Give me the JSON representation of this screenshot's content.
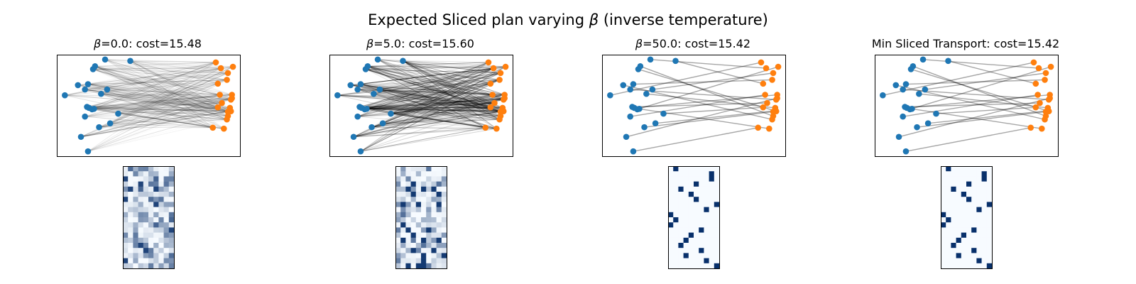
{
  "figure": {
    "title_prefix": "Expected Sliced plan varying ",
    "title_symbol": "β",
    "title_suffix": " (inverse temperature)"
  },
  "colors": {
    "source_points": "#1f77b4",
    "target_points": "#ff7f0e",
    "edges": "#000000",
    "heatmap_low": "#f7fbff",
    "heatmap_high": "#08306b"
  },
  "chart_data": [
    {
      "type": "scatter",
      "title_symbol": "β",
      "title_text": "=0.0: cost=15.48",
      "plan_mode": "soft",
      "edge_opacity": 0.18,
      "plan_values": "diffuse",
      "source": {
        "x": [
          0.31,
          0.08,
          0.37,
          0.35,
          0.32,
          0.21,
          0.28,
          0.48,
          0.24,
          0.5,
          0.28,
          0.31,
          0.42,
          0.36,
          0.38,
          0.61,
          0.44,
          0.53,
          0.3,
          0.73
        ],
        "y": [
          -1.12,
          0.04,
          -0.24,
          -0.25,
          -0.22,
          0.25,
          -0.4,
          0.78,
          -0.82,
          0.16,
          0.16,
          0.27,
          -0.62,
          0.58,
          0.64,
          -0.34,
          0.07,
          -0.54,
          -0.2,
          0.75
        ]
      },
      "target": {
        "x": [
          1.7,
          1.55,
          1.74,
          1.72,
          1.73,
          1.62,
          1.72,
          1.74,
          1.66,
          1.63,
          1.69,
          1.73,
          1.6,
          1.7,
          1.69,
          1.75,
          1.7,
          1.64,
          1.58,
          1.6
        ],
        "y": [
          0.5,
          -0.63,
          0.05,
          -0.28,
          -0.29,
          0.05,
          -0.22,
          -0.02,
          -0.65,
          0.6,
          0.36,
          -0.05,
          -0.21,
          -0.39,
          -0.46,
          0.63,
          -0.3,
          -0.12,
          0.72,
          0.28
        ]
      }
    },
    {
      "type": "scatter",
      "title_symbol": "β",
      "title_text": "=5.0: cost=15.60",
      "plan_mode": "soft",
      "edge_opacity": 0.24,
      "plan_values": "semi-diffuse",
      "source": {
        "x": [
          0.31,
          0.08,
          0.37,
          0.35,
          0.32,
          0.21,
          0.28,
          0.48,
          0.24,
          0.5,
          0.28,
          0.31,
          0.42,
          0.36,
          0.38,
          0.61,
          0.44,
          0.53,
          0.3,
          0.73
        ],
        "y": [
          -1.12,
          0.04,
          -0.24,
          -0.25,
          -0.22,
          0.25,
          -0.4,
          0.78,
          -0.82,
          0.16,
          0.16,
          0.27,
          -0.62,
          0.58,
          0.64,
          -0.34,
          0.07,
          -0.54,
          -0.2,
          0.75
        ]
      },
      "target": {
        "x": [
          1.7,
          1.55,
          1.74,
          1.72,
          1.73,
          1.62,
          1.72,
          1.74,
          1.66,
          1.63,
          1.69,
          1.73,
          1.6,
          1.7,
          1.69,
          1.75,
          1.7,
          1.64,
          1.58,
          1.6
        ],
        "y": [
          0.5,
          -0.63,
          0.05,
          -0.28,
          -0.29,
          0.05,
          -0.22,
          -0.02,
          -0.65,
          0.6,
          0.36,
          -0.05,
          -0.21,
          -0.39,
          -0.46,
          0.63,
          -0.3,
          -0.12,
          0.72,
          0.28
        ]
      }
    },
    {
      "type": "scatter",
      "title_symbol": "β",
      "title_text": "=50.0: cost=15.42",
      "plan_mode": "hard",
      "edge_opacity": 0.35,
      "plan_values": "permutation",
      "source": {
        "x": [
          0.31,
          0.08,
          0.37,
          0.35,
          0.32,
          0.21,
          0.28,
          0.48,
          0.24,
          0.5,
          0.28,
          0.31,
          0.42,
          0.36,
          0.38,
          0.61,
          0.44,
          0.53,
          0.3,
          0.73
        ],
        "y": [
          -1.12,
          0.04,
          -0.24,
          -0.25,
          -0.22,
          0.25,
          -0.4,
          0.78,
          -0.82,
          0.16,
          0.16,
          0.27,
          -0.62,
          0.58,
          0.64,
          -0.34,
          0.07,
          -0.54,
          -0.2,
          0.75
        ]
      },
      "target": {
        "x": [
          1.7,
          1.55,
          1.74,
          1.72,
          1.73,
          1.62,
          1.72,
          1.74,
          1.66,
          1.63,
          1.69,
          1.73,
          1.6,
          1.7,
          1.69,
          1.75,
          1.7,
          1.64,
          1.58,
          1.6
        ],
        "y": [
          0.5,
          -0.63,
          0.05,
          -0.28,
          -0.29,
          0.05,
          -0.22,
          -0.02,
          -0.65,
          0.6,
          0.36,
          -0.05,
          -0.21,
          -0.39,
          -0.46,
          0.63,
          -0.3,
          -0.12,
          0.72,
          0.28
        ]
      },
      "perm": [
        1,
        18,
        8,
        15,
        2,
        14,
        5,
        9,
        7,
        0,
        11,
        10,
        16,
        4,
        13,
        12,
        6,
        3,
        17,
        19
      ]
    },
    {
      "type": "scatter",
      "title_symbol": "",
      "title_text": "Min Sliced Transport: cost=15.42",
      "plan_mode": "hard",
      "edge_opacity": 0.35,
      "plan_values": "permutation",
      "source": {
        "x": [
          0.31,
          0.08,
          0.37,
          0.35,
          0.32,
          0.21,
          0.28,
          0.48,
          0.24,
          0.5,
          0.28,
          0.31,
          0.42,
          0.36,
          0.38,
          0.61,
          0.44,
          0.53,
          0.3,
          0.73
        ],
        "y": [
          -1.12,
          0.04,
          -0.24,
          -0.25,
          -0.22,
          0.25,
          -0.4,
          0.78,
          -0.82,
          0.16,
          0.16,
          0.27,
          -0.62,
          0.58,
          0.64,
          -0.34,
          0.07,
          -0.54,
          -0.2,
          0.75
        ]
      },
      "target": {
        "x": [
          1.7,
          1.55,
          1.74,
          1.72,
          1.73,
          1.62,
          1.72,
          1.74,
          1.66,
          1.63,
          1.69,
          1.73,
          1.6,
          1.7,
          1.69,
          1.75,
          1.7,
          1.64,
          1.58,
          1.6
        ],
        "y": [
          0.5,
          -0.63,
          0.05,
          -0.28,
          -0.29,
          0.05,
          -0.22,
          -0.02,
          -0.65,
          0.6,
          0.36,
          -0.05,
          -0.21,
          -0.39,
          -0.46,
          0.63,
          -0.3,
          -0.12,
          0.72,
          0.28
        ]
      },
      "perm": [
        1,
        18,
        8,
        15,
        2,
        14,
        5,
        9,
        7,
        0,
        11,
        10,
        16,
        4,
        13,
        12,
        6,
        3,
        17,
        19
      ]
    }
  ]
}
